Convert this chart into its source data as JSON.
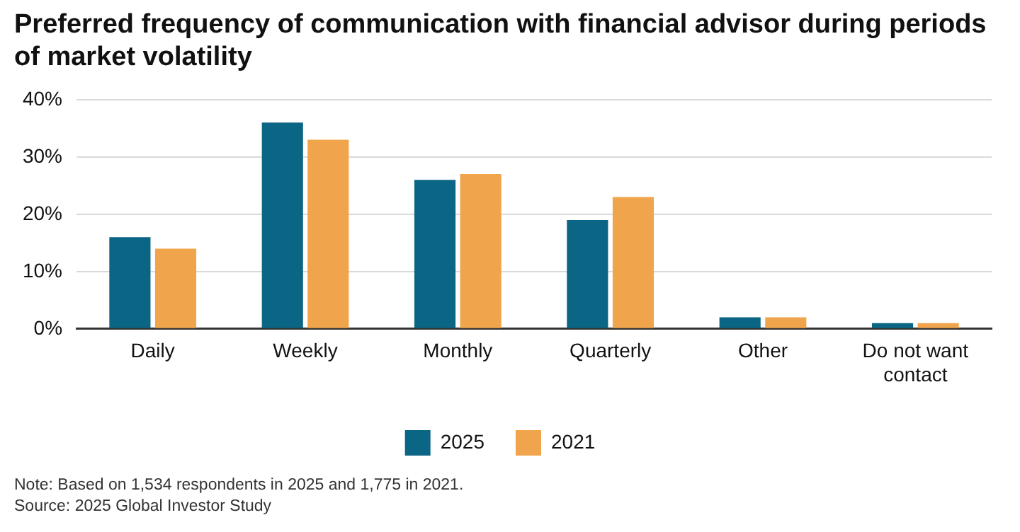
{
  "chart_data": {
    "type": "bar",
    "title": "Preferred frequency of communication with financial advisor during periods of market volatility",
    "categories": [
      "Daily",
      "Weekly",
      "Monthly",
      "Quarterly",
      "Other",
      "Do not want contact"
    ],
    "series": [
      {
        "name": "2025",
        "color": "#0b6584",
        "values": [
          16,
          36,
          26,
          19,
          2,
          1
        ]
      },
      {
        "name": "2021",
        "color": "#f0a54c",
        "values": [
          14,
          33,
          27,
          23,
          2,
          1
        ]
      }
    ],
    "ylim": [
      0,
      40
    ],
    "yticks": [
      {
        "value": 0,
        "label": "0%"
      },
      {
        "value": 10,
        "label": "10%"
      },
      {
        "value": 20,
        "label": "20%"
      },
      {
        "value": 30,
        "label": "30%"
      },
      {
        "value": 40,
        "label": "40%"
      }
    ],
    "grid": "y",
    "legend": "bottom",
    "annotations": [
      "Note: Based on 1,534 respondents in 2025 and 1,775 in 2021.",
      "Source: 2025 Global Investor Study"
    ]
  }
}
